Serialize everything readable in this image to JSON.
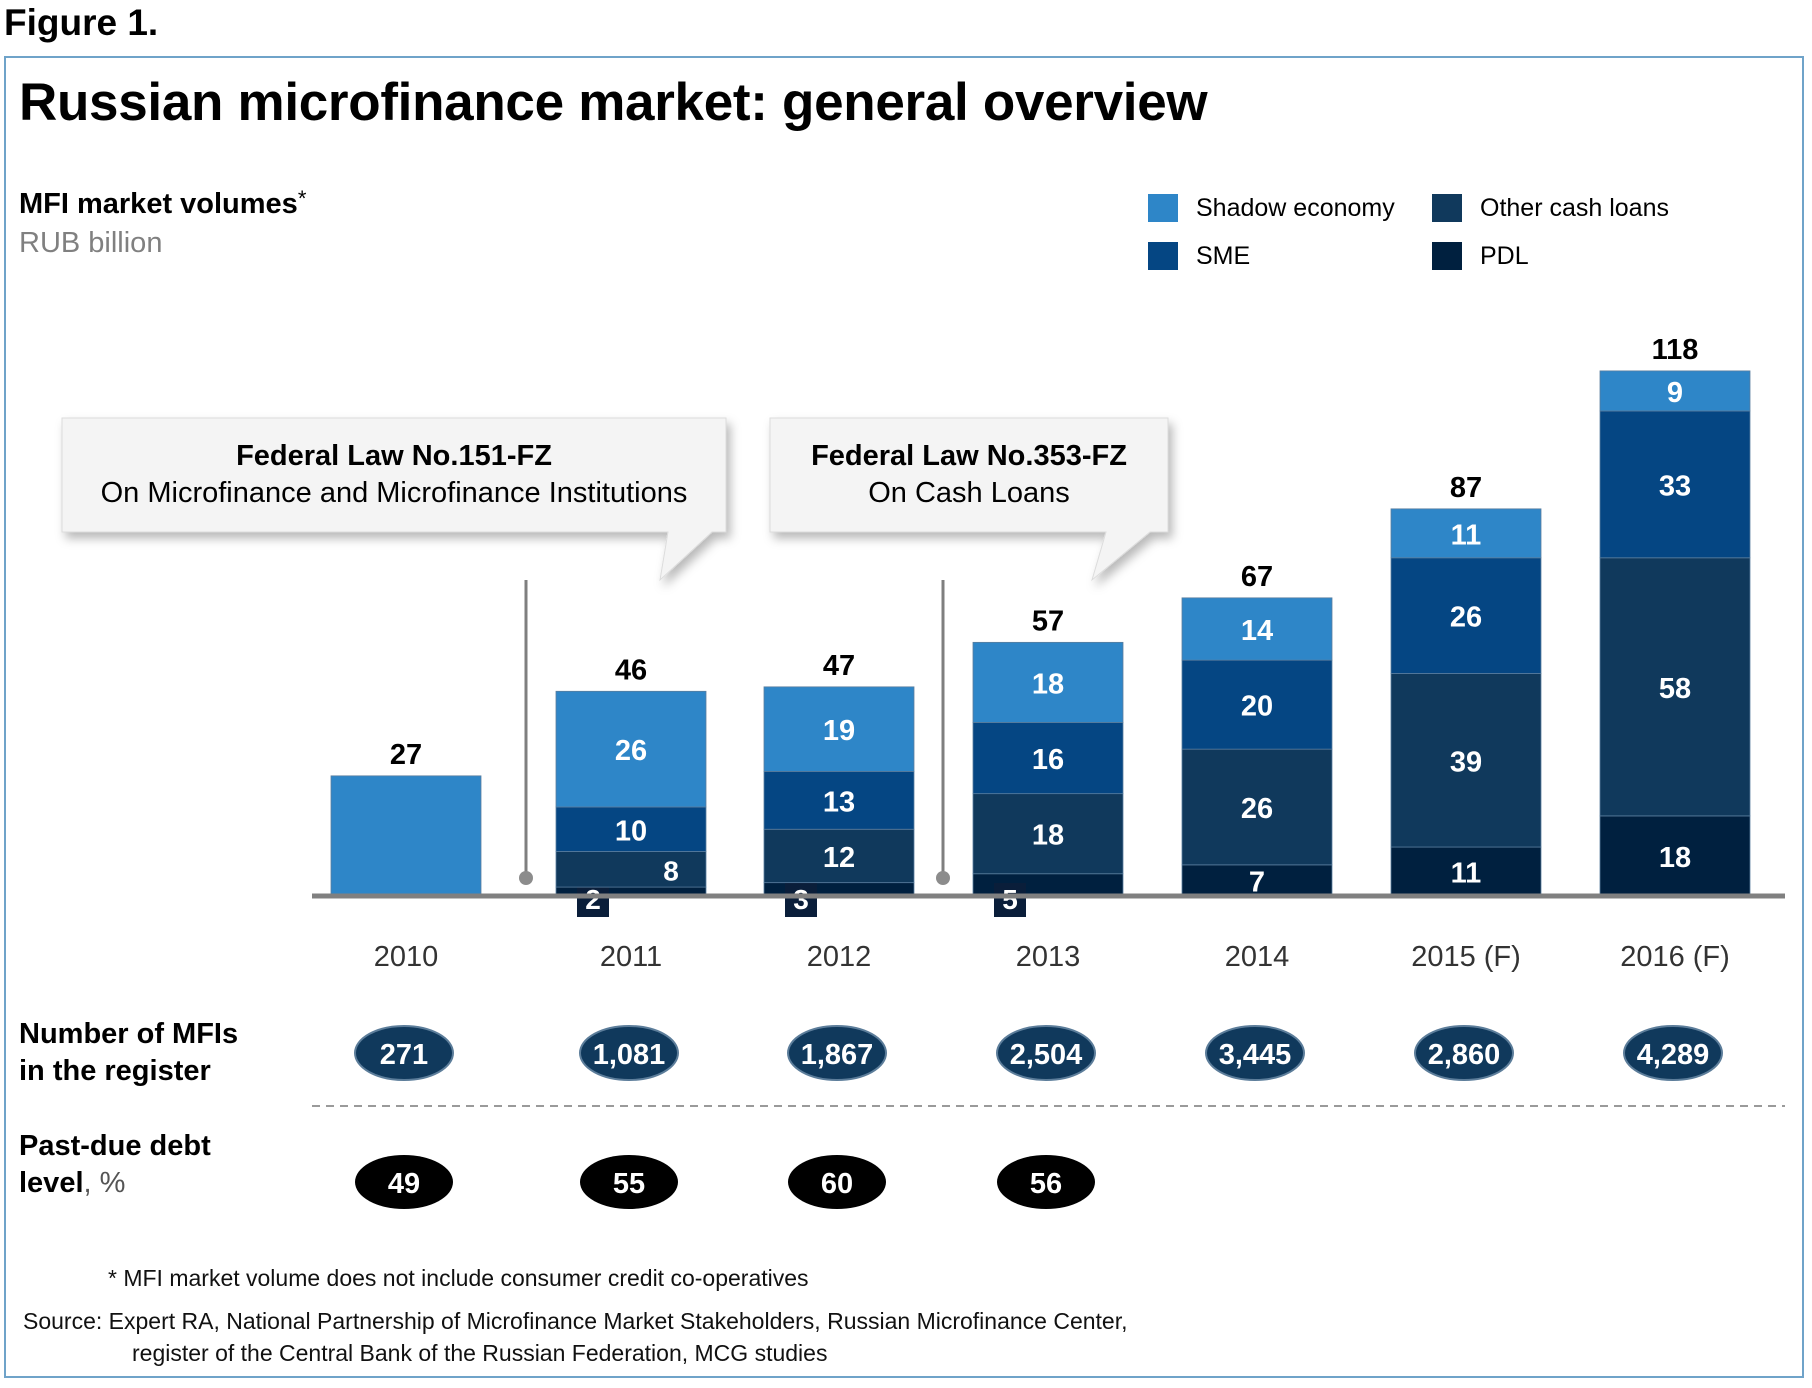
{
  "figure_label": "Figure 1.",
  "title": "Russian microfinance market: general overview",
  "subtitle": "MFI market volumes",
  "subtitle_mark": "*",
  "unit": "RUB billion",
  "legend": [
    {
      "label": "Shadow economy",
      "color": "#2e86c8"
    },
    {
      "label": "Other cash loans",
      "color": "#10395c"
    },
    {
      "label": "SME",
      "color": "#054683"
    },
    {
      "label": "PDL",
      "color": "#00203f"
    }
  ],
  "callouts": [
    {
      "law": "Federal Law No.151-FZ",
      "desc": "On Microfinance and Microfinance Institutions"
    },
    {
      "law": "Federal Law No.353-FZ",
      "desc": "On Cash Loans"
    }
  ],
  "rows": {
    "mfi_count_label_1": "Number of MFIs",
    "mfi_count_label_2": "in the register",
    "pastdue_label_1": "Past-due debt",
    "pastdue_label_2": "level",
    "pastdue_label_unit": ", %"
  },
  "footnote": "*  MFI market volume  does not include consumer credit co-operatives",
  "source_line_1": "Source:  Expert RA, National Partnership  of Microfinance  Market Stakeholders, Russian Microfinance Center,",
  "source_line_2": "register of the Central Bank of the Russian Federation, MCG studies",
  "chart_data": {
    "type": "bar",
    "stacked": true,
    "categories": [
      "2010",
      "2011",
      "2012",
      "2013",
      "2014",
      "2015 (F)",
      "2016 (F)"
    ],
    "totals": [
      27,
      46,
      47,
      57,
      67,
      87,
      118
    ],
    "series": [
      {
        "name": "PDL",
        "values": [
          null,
          2,
          3,
          5,
          7,
          11,
          18
        ],
        "color": "#00203f"
      },
      {
        "name": "Other cash loans",
        "values": [
          null,
          8,
          12,
          18,
          26,
          39,
          58
        ],
        "color": "#10395c"
      },
      {
        "name": "SME",
        "values": [
          null,
          10,
          13,
          16,
          20,
          26,
          33
        ],
        "color": "#054683"
      },
      {
        "name": "Shadow economy",
        "values": [
          27,
          26,
          19,
          18,
          14,
          11,
          9
        ],
        "color": "#2e86c8"
      }
    ],
    "mfi_counts": [
      "271",
      "1,081",
      "1,867",
      "2,504",
      "3,445",
      "2,860",
      "4,289"
    ],
    "past_due": [
      "49",
      "55",
      "60",
      "56"
    ],
    "legend_position": "top-right",
    "grid": false
  }
}
